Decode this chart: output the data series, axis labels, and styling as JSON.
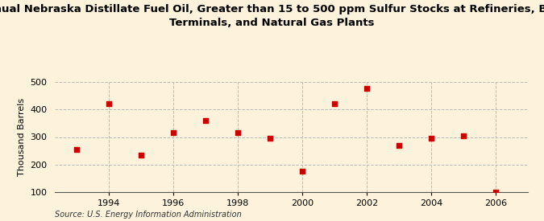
{
  "title_line1": "Annual Nebraska Distillate Fuel Oil, Greater than 15 to 500 ppm Sulfur Stocks at Refineries, Bulk",
  "title_line2": "Terminals, and Natural Gas Plants",
  "ylabel": "Thousand Barrels",
  "source": "Source: U.S. Energy Information Administration",
  "years": [
    1993,
    1994,
    1995,
    1996,
    1997,
    1998,
    1999,
    2000,
    2001,
    2002,
    2003,
    2004,
    2005,
    2006
  ],
  "values": [
    255,
    420,
    235,
    315,
    360,
    315,
    295,
    175,
    420,
    475,
    270,
    295,
    305,
    100
  ],
  "marker_color": "#cc0000",
  "marker": "s",
  "marker_size": 4,
  "background_color": "#fdf3dc",
  "grid_color": "#bbbbbb",
  "ylim": [
    100,
    500
  ],
  "yticks": [
    100,
    200,
    300,
    400,
    500
  ],
  "xlim": [
    1992.3,
    2007.0
  ],
  "xticks": [
    1994,
    1996,
    1998,
    2000,
    2002,
    2004,
    2006
  ],
  "title_fontsize": 9.5,
  "ylabel_fontsize": 8,
  "tick_fontsize": 8,
  "source_fontsize": 7
}
